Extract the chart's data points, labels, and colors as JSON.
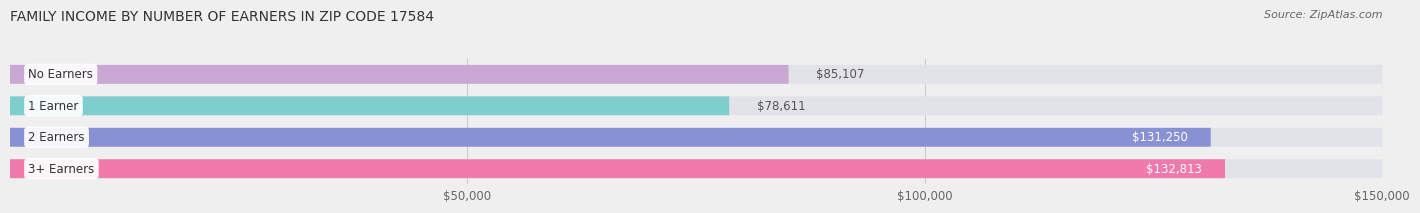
{
  "title": "FAMILY INCOME BY NUMBER OF EARNERS IN ZIP CODE 17584",
  "source": "Source: ZipAtlas.com",
  "categories": [
    "No Earners",
    "1 Earner",
    "2 Earners",
    "3+ Earners"
  ],
  "values": [
    85107,
    78611,
    131250,
    132813
  ],
  "bar_colors": [
    "#c9a8d4",
    "#7ecece",
    "#8891d4",
    "#f07aab"
  ],
  "label_colors": [
    "#555555",
    "#555555",
    "#ffffff",
    "#ffffff"
  ],
  "value_labels": [
    "$85,107",
    "$78,611",
    "$131,250",
    "$132,813"
  ],
  "xlim_min": 0,
  "xlim_max": 150000,
  "xticks": [
    50000,
    100000,
    150000
  ],
  "xtick_labels": [
    "$50,000",
    "$100,000",
    "$150,000"
  ],
  "background_color": "#efefef",
  "bar_background": "#e2e2e9",
  "title_fontsize": 10,
  "source_fontsize": 8,
  "bar_label_fontsize": 8.5,
  "value_label_fontsize": 8.5
}
